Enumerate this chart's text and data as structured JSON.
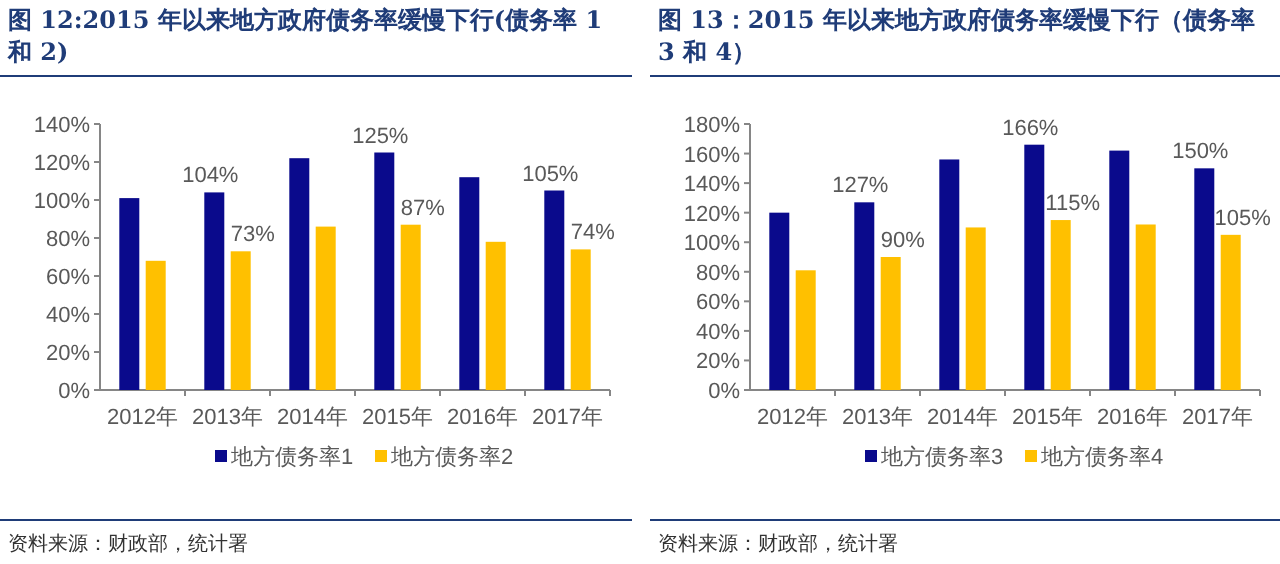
{
  "chart_data": [
    {
      "type": "bar",
      "title": "图 12:2015 年以来地方政府债务率缓慢下行(债务率 1 和 2)",
      "categories": [
        "2012年",
        "2013年",
        "2014年",
        "2015年",
        "2016年",
        "2017年"
      ],
      "series": [
        {
          "name": "地方债务率1",
          "color": "#0a0a8c",
          "values": [
            101,
            104,
            122,
            125,
            112,
            105
          ],
          "value_labels": [
            null,
            "104%",
            null,
            "125%",
            null,
            "105%"
          ]
        },
        {
          "name": "地方债务率2",
          "color": "#ffc000",
          "values": [
            68,
            73,
            86,
            87,
            78,
            74
          ],
          "value_labels": [
            null,
            "73%",
            null,
            "87%",
            null,
            "74%"
          ]
        }
      ],
      "ylim": [
        0,
        140
      ],
      "yticks": [
        {
          "value": 0,
          "label": "0%"
        },
        {
          "value": 20,
          "label": "20%"
        },
        {
          "value": 40,
          "label": "40%"
        },
        {
          "value": 60,
          "label": "60%"
        },
        {
          "value": 80,
          "label": "80%"
        },
        {
          "value": 100,
          "label": "100%"
        },
        {
          "value": 120,
          "label": "120%"
        },
        {
          "value": 140,
          "label": "140%"
        }
      ],
      "legend": "bottom",
      "annotations": [
        "资料来源：财政部，统计署"
      ]
    },
    {
      "type": "bar",
      "title": "图 13：2015 年以来地方政府债务率缓慢下行（债务率 3 和 4）",
      "categories": [
        "2012年",
        "2013年",
        "2014年",
        "2015年",
        "2016年",
        "2017年"
      ],
      "series": [
        {
          "name": "地方债务率3",
          "color": "#0a0a8c",
          "values": [
            120,
            127,
            156,
            166,
            162,
            150
          ],
          "value_labels": [
            null,
            "127%",
            null,
            "166%",
            null,
            "150%"
          ]
        },
        {
          "name": "地方债务率4",
          "color": "#ffc000",
          "values": [
            81,
            90,
            110,
            115,
            112,
            105
          ],
          "value_labels": [
            null,
            "90%",
            null,
            "115%",
            null,
            "105%"
          ]
        }
      ],
      "ylim": [
        0,
        180
      ],
      "yticks": [
        {
          "value": 0,
          "label": "0%"
        },
        {
          "value": 20,
          "label": "20%"
        },
        {
          "value": 40,
          "label": "40%"
        },
        {
          "value": 60,
          "label": "60%"
        },
        {
          "value": 80,
          "label": "80%"
        },
        {
          "value": 100,
          "label": "100%"
        },
        {
          "value": 120,
          "label": "120%"
        },
        {
          "value": 140,
          "label": "140%"
        },
        {
          "value": 160,
          "label": "160%"
        },
        {
          "value": 180,
          "label": "180%"
        }
      ],
      "legend": "bottom",
      "annotations": [
        "资料来源：财政部，统计署"
      ]
    }
  ]
}
